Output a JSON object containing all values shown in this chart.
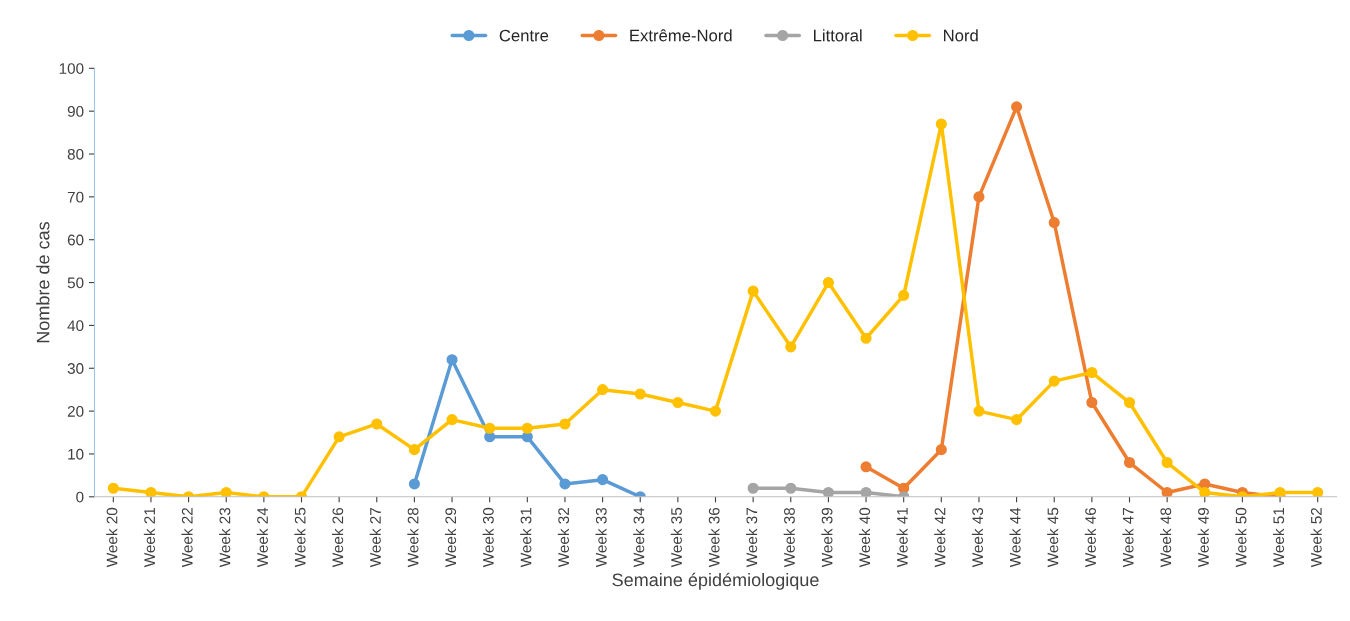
{
  "chart_data": {
    "type": "line",
    "xlabel": "Semaine épidémiologique",
    "ylabel": "Nombre de cas",
    "categories": [
      "Week 20",
      "Week 21",
      "Week 22",
      "Week 23",
      "Week 24",
      "Week 25",
      "Week 26",
      "Week 27",
      "Week 28",
      "Week 29",
      "Week 30",
      "Week 31",
      "Week 32",
      "Week 33",
      "Week 34",
      "Week 35",
      "Week 36",
      "Week 37",
      "Week 38",
      "Week 39",
      "Week 40",
      "Week 41",
      "Week 42",
      "Week 43",
      "Week 44",
      "Week 45",
      "Week 46",
      "Week 47",
      "Week 48",
      "Week 49",
      "Week 50",
      "Week 51",
      "Week 52"
    ],
    "series": [
      {
        "name": "Centre",
        "color": "#5b9bd5",
        "values": [
          null,
          null,
          null,
          null,
          null,
          null,
          null,
          null,
          3,
          32,
          14,
          14,
          3,
          4,
          0,
          null,
          null,
          null,
          null,
          null,
          null,
          null,
          null,
          null,
          null,
          null,
          null,
          null,
          null,
          null,
          null,
          null,
          null
        ]
      },
      {
        "name": "Extrême-Nord",
        "color": "#ed7d31",
        "values": [
          null,
          null,
          null,
          null,
          null,
          null,
          null,
          null,
          null,
          null,
          null,
          null,
          null,
          null,
          null,
          null,
          null,
          null,
          null,
          null,
          7,
          2,
          11,
          70,
          91,
          64,
          22,
          8,
          1,
          3,
          1,
          0,
          null
        ]
      },
      {
        "name": "Littoral",
        "color": "#a5a5a5",
        "values": [
          null,
          null,
          null,
          null,
          null,
          null,
          null,
          null,
          null,
          null,
          null,
          null,
          null,
          null,
          null,
          null,
          null,
          2,
          2,
          1,
          1,
          0,
          null,
          null,
          null,
          null,
          null,
          null,
          null,
          null,
          null,
          null,
          null
        ]
      },
      {
        "name": "Nord",
        "color": "#ffc000",
        "values": [
          2,
          1,
          0,
          1,
          0,
          0,
          14,
          17,
          11,
          18,
          16,
          16,
          17,
          25,
          24,
          22,
          20,
          48,
          35,
          50,
          37,
          47,
          87,
          20,
          18,
          27,
          29,
          22,
          8,
          1,
          0,
          1,
          1
        ]
      }
    ],
    "ylim": [
      0,
      100
    ],
    "yticks": [
      0,
      10,
      20,
      30,
      40,
      50,
      60,
      70,
      80,
      90,
      100
    ],
    "grid": false,
    "legend": "top",
    "marker": "circle",
    "line_style": "solid"
  }
}
